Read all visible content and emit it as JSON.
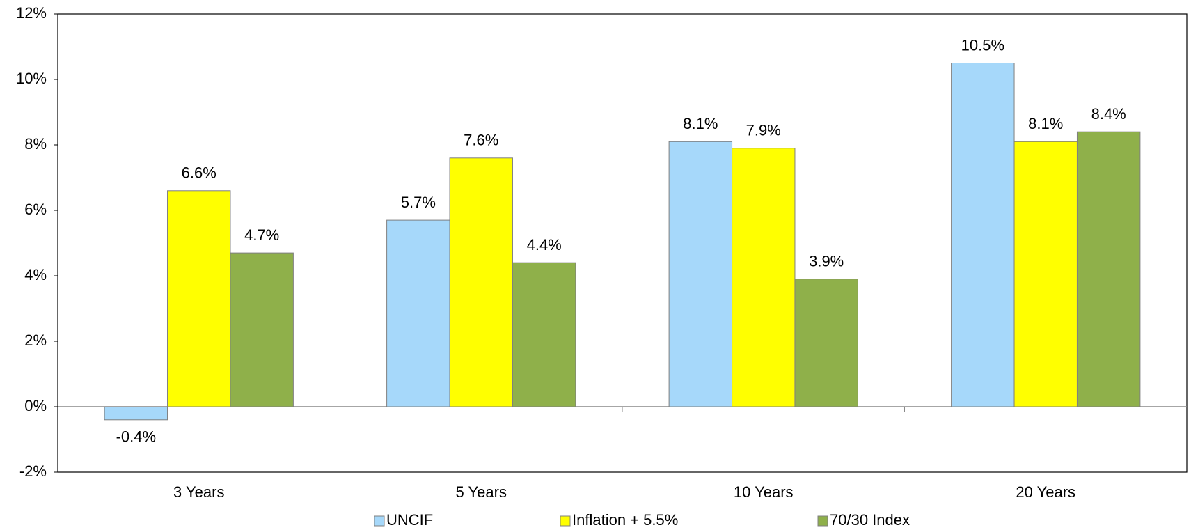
{
  "chart_data": {
    "type": "bar",
    "categories": [
      "3 Years",
      "5 Years",
      "10 Years",
      "20 Years"
    ],
    "series": [
      {
        "name": "UNCIF",
        "color": "#a6d8fa",
        "values": [
          -0.4,
          5.7,
          8.1,
          10.5
        ],
        "value_labels": [
          "-0.4%",
          "5.7%",
          "8.1%",
          "10.5%"
        ]
      },
      {
        "name": "Inflation + 5.5%",
        "color": "#ffff00",
        "values": [
          6.6,
          7.6,
          7.9,
          8.1
        ],
        "value_labels": [
          "6.6%",
          "7.6%",
          "7.9%",
          "8.1%"
        ]
      },
      {
        "name": "70/30 Index",
        "color": "#8fb04a",
        "values": [
          4.7,
          4.4,
          3.9,
          8.4
        ],
        "value_labels": [
          "4.7%",
          "4.4%",
          "3.9%",
          "8.4%"
        ]
      }
    ],
    "ylim": [
      -2,
      12
    ],
    "yticks": [
      {
        "value": -2,
        "label": "-2%"
      },
      {
        "value": 0,
        "label": "0%"
      },
      {
        "value": 2,
        "label": "2%"
      },
      {
        "value": 4,
        "label": "4%"
      },
      {
        "value": 6,
        "label": "6%"
      },
      {
        "value": 8,
        "label": "8%"
      },
      {
        "value": 10,
        "label": "10%"
      },
      {
        "value": 12,
        "label": "12%"
      }
    ],
    "legend": "bottom"
  }
}
